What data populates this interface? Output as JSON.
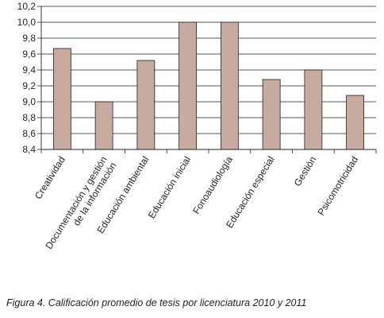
{
  "chart_data": {
    "type": "bar",
    "categories": [
      "Creatividad",
      "Documentación y gestión de la información",
      "Educación ambiental",
      "Educación inicial",
      "Fonoaudiología",
      "Educación especial",
      "Gestión",
      "Psicomotricidad"
    ],
    "category_lines": [
      [
        "Creatividad"
      ],
      [
        "Documentación y gestión",
        "de la información"
      ],
      [
        "Educación ambiental"
      ],
      [
        "Educación inicial"
      ],
      [
        "Fonoaudiología"
      ],
      [
        "Educación especial"
      ],
      [
        "Gestión"
      ],
      [
        "Psicomotricidad"
      ]
    ],
    "values": [
      9.67,
      9.0,
      9.52,
      10.0,
      10.0,
      9.28,
      9.4,
      9.08
    ],
    "ylim": [
      8.4,
      10.2
    ],
    "yticks": [
      "8,4",
      "8,6",
      "8,8",
      "9,0",
      "9,2",
      "9,4",
      "9,6",
      "9,8",
      "10,0",
      "10,2"
    ],
    "grid": true,
    "bar_color": "#c8aba0",
    "xlabel": "",
    "ylabel": ""
  },
  "caption": "Figura 4. Calificación promedio de tesis por licenciatura 2010 y 2011"
}
